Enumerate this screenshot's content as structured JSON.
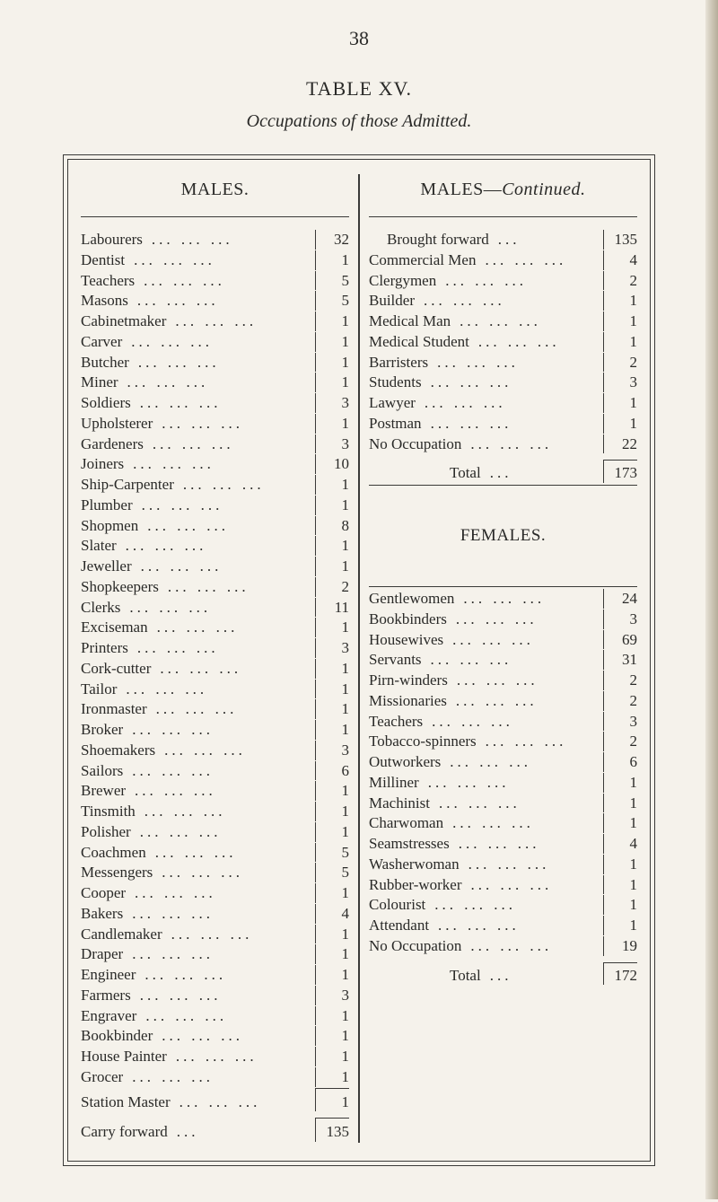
{
  "page_number": "38",
  "table_title": "TABLE XV.",
  "table_subtitle": "Occupations of those Admitted.",
  "males_header": "MALES.",
  "males_continued_header": "MALES—",
  "males_continued_suffix": "Continued.",
  "females_header": "FEMALES.",
  "carry_forward_label": "Carry forward",
  "carry_forward_value": "135",
  "brought_forward_label": "Brought forward",
  "brought_forward_value": "135",
  "males_total_label": "Total",
  "males_total_value": "173",
  "females_total_label": "Total",
  "females_total_value": "172",
  "males_left": [
    {
      "label": "Labourers",
      "value": "32"
    },
    {
      "label": "Dentist",
      "value": "1"
    },
    {
      "label": "Teachers",
      "value": "5"
    },
    {
      "label": "Masons",
      "value": "5"
    },
    {
      "label": "Cabinetmaker",
      "value": "1"
    },
    {
      "label": "Carver",
      "value": "1"
    },
    {
      "label": "Butcher",
      "value": "1"
    },
    {
      "label": "Miner",
      "value": "1"
    },
    {
      "label": "Soldiers",
      "value": "3"
    },
    {
      "label": "Upholsterer",
      "value": "1"
    },
    {
      "label": "Gardeners",
      "value": "3"
    },
    {
      "label": "Joiners",
      "value": "10"
    },
    {
      "label": "Ship-Carpenter",
      "value": "1"
    },
    {
      "label": "Plumber",
      "value": "1"
    },
    {
      "label": "Shopmen",
      "value": "8"
    },
    {
      "label": "Slater",
      "value": "1"
    },
    {
      "label": "Jeweller",
      "value": "1"
    },
    {
      "label": "Shopkeepers",
      "value": "2"
    },
    {
      "label": "Clerks",
      "value": "11"
    },
    {
      "label": "Exciseman",
      "value": "1"
    },
    {
      "label": "Printers",
      "value": "3"
    },
    {
      "label": "Cork-cutter",
      "value": "1"
    },
    {
      "label": "Tailor",
      "value": "1"
    },
    {
      "label": "Ironmaster",
      "value": "1"
    },
    {
      "label": "Broker",
      "value": "1"
    },
    {
      "label": "Shoemakers",
      "value": "3"
    },
    {
      "label": "Sailors",
      "value": "6"
    },
    {
      "label": "Brewer",
      "value": "1"
    },
    {
      "label": "Tinsmith",
      "value": "1"
    },
    {
      "label": "Polisher",
      "value": "1"
    },
    {
      "label": "Coachmen",
      "value": "5"
    },
    {
      "label": "Messengers",
      "value": "5"
    },
    {
      "label": "Cooper",
      "value": "1"
    },
    {
      "label": "Bakers",
      "value": "4"
    },
    {
      "label": "Candlemaker",
      "value": "1"
    },
    {
      "label": "Draper",
      "value": "1"
    },
    {
      "label": "Engineer",
      "value": "1"
    },
    {
      "label": "Farmers",
      "value": "3"
    },
    {
      "label": "Engraver",
      "value": "1"
    },
    {
      "label": "Bookbinder",
      "value": "1"
    },
    {
      "label": "House Painter",
      "value": "1"
    },
    {
      "label": "Grocer",
      "value": "1"
    },
    {
      "label": "Station Master",
      "value": "1"
    }
  ],
  "males_right": [
    {
      "label": "Commercial Men",
      "value": "4"
    },
    {
      "label": "Clergymen",
      "value": "2"
    },
    {
      "label": "Builder",
      "value": "1"
    },
    {
      "label": "Medical Man",
      "value": "1"
    },
    {
      "label": "Medical Student",
      "value": "1"
    },
    {
      "label": "Barristers",
      "value": "2"
    },
    {
      "label": "Students",
      "value": "3"
    },
    {
      "label": "Lawyer",
      "value": "1"
    },
    {
      "label": "Postman",
      "value": "1"
    },
    {
      "label": "No Occupation",
      "value": "22"
    }
  ],
  "females": [
    {
      "label": "Gentlewomen",
      "value": "24"
    },
    {
      "label": "Bookbinders",
      "value": "3"
    },
    {
      "label": "Housewives",
      "value": "69"
    },
    {
      "label": "Servants",
      "value": "31"
    },
    {
      "label": "Pirn-winders",
      "value": "2"
    },
    {
      "label": "Missionaries",
      "value": "2"
    },
    {
      "label": "Teachers",
      "value": "3"
    },
    {
      "label": "Tobacco-spinners",
      "value": "2"
    },
    {
      "label": "Outworkers",
      "value": "6"
    },
    {
      "label": "Milliner",
      "value": "1"
    },
    {
      "label": "Machinist",
      "value": "1"
    },
    {
      "label": "Charwoman",
      "value": "1"
    },
    {
      "label": "Seamstresses",
      "value": "4"
    },
    {
      "label": "Washerwoman",
      "value": "1"
    },
    {
      "label": "Rubber-worker",
      "value": "1"
    },
    {
      "label": "Colourist",
      "value": "1"
    },
    {
      "label": "Attendant",
      "value": "1"
    },
    {
      "label": "No Occupation",
      "value": "19"
    }
  ],
  "colors": {
    "background": "#f5f2eb",
    "text": "#2a2a28",
    "border": "#3a3a38"
  }
}
